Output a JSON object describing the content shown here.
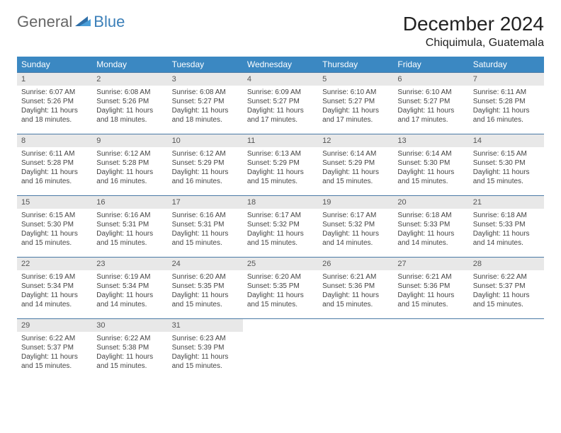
{
  "logo": {
    "text1": "General",
    "text2": "Blue"
  },
  "title": "December 2024",
  "location": "Chiquimula, Guatemala",
  "colors": {
    "header_bg": "#3b88c2",
    "header_text": "#ffffff",
    "daynum_bg": "#e8e8e8",
    "week_border": "#4a7aa5",
    "logo_gray": "#666666",
    "logo_blue": "#3b7fb8"
  },
  "day_names": [
    "Sunday",
    "Monday",
    "Tuesday",
    "Wednesday",
    "Thursday",
    "Friday",
    "Saturday"
  ],
  "weeks": [
    [
      {
        "day": "1",
        "sunrise": "Sunrise: 6:07 AM",
        "sunset": "Sunset: 5:26 PM",
        "daylight": "Daylight: 11 hours and 18 minutes."
      },
      {
        "day": "2",
        "sunrise": "Sunrise: 6:08 AM",
        "sunset": "Sunset: 5:26 PM",
        "daylight": "Daylight: 11 hours and 18 minutes."
      },
      {
        "day": "3",
        "sunrise": "Sunrise: 6:08 AM",
        "sunset": "Sunset: 5:27 PM",
        "daylight": "Daylight: 11 hours and 18 minutes."
      },
      {
        "day": "4",
        "sunrise": "Sunrise: 6:09 AM",
        "sunset": "Sunset: 5:27 PM",
        "daylight": "Daylight: 11 hours and 17 minutes."
      },
      {
        "day": "5",
        "sunrise": "Sunrise: 6:10 AM",
        "sunset": "Sunset: 5:27 PM",
        "daylight": "Daylight: 11 hours and 17 minutes."
      },
      {
        "day": "6",
        "sunrise": "Sunrise: 6:10 AM",
        "sunset": "Sunset: 5:27 PM",
        "daylight": "Daylight: 11 hours and 17 minutes."
      },
      {
        "day": "7",
        "sunrise": "Sunrise: 6:11 AM",
        "sunset": "Sunset: 5:28 PM",
        "daylight": "Daylight: 11 hours and 16 minutes."
      }
    ],
    [
      {
        "day": "8",
        "sunrise": "Sunrise: 6:11 AM",
        "sunset": "Sunset: 5:28 PM",
        "daylight": "Daylight: 11 hours and 16 minutes."
      },
      {
        "day": "9",
        "sunrise": "Sunrise: 6:12 AM",
        "sunset": "Sunset: 5:28 PM",
        "daylight": "Daylight: 11 hours and 16 minutes."
      },
      {
        "day": "10",
        "sunrise": "Sunrise: 6:12 AM",
        "sunset": "Sunset: 5:29 PM",
        "daylight": "Daylight: 11 hours and 16 minutes."
      },
      {
        "day": "11",
        "sunrise": "Sunrise: 6:13 AM",
        "sunset": "Sunset: 5:29 PM",
        "daylight": "Daylight: 11 hours and 15 minutes."
      },
      {
        "day": "12",
        "sunrise": "Sunrise: 6:14 AM",
        "sunset": "Sunset: 5:29 PM",
        "daylight": "Daylight: 11 hours and 15 minutes."
      },
      {
        "day": "13",
        "sunrise": "Sunrise: 6:14 AM",
        "sunset": "Sunset: 5:30 PM",
        "daylight": "Daylight: 11 hours and 15 minutes."
      },
      {
        "day": "14",
        "sunrise": "Sunrise: 6:15 AM",
        "sunset": "Sunset: 5:30 PM",
        "daylight": "Daylight: 11 hours and 15 minutes."
      }
    ],
    [
      {
        "day": "15",
        "sunrise": "Sunrise: 6:15 AM",
        "sunset": "Sunset: 5:30 PM",
        "daylight": "Daylight: 11 hours and 15 minutes."
      },
      {
        "day": "16",
        "sunrise": "Sunrise: 6:16 AM",
        "sunset": "Sunset: 5:31 PM",
        "daylight": "Daylight: 11 hours and 15 minutes."
      },
      {
        "day": "17",
        "sunrise": "Sunrise: 6:16 AM",
        "sunset": "Sunset: 5:31 PM",
        "daylight": "Daylight: 11 hours and 15 minutes."
      },
      {
        "day": "18",
        "sunrise": "Sunrise: 6:17 AM",
        "sunset": "Sunset: 5:32 PM",
        "daylight": "Daylight: 11 hours and 15 minutes."
      },
      {
        "day": "19",
        "sunrise": "Sunrise: 6:17 AM",
        "sunset": "Sunset: 5:32 PM",
        "daylight": "Daylight: 11 hours and 14 minutes."
      },
      {
        "day": "20",
        "sunrise": "Sunrise: 6:18 AM",
        "sunset": "Sunset: 5:33 PM",
        "daylight": "Daylight: 11 hours and 14 minutes."
      },
      {
        "day": "21",
        "sunrise": "Sunrise: 6:18 AM",
        "sunset": "Sunset: 5:33 PM",
        "daylight": "Daylight: 11 hours and 14 minutes."
      }
    ],
    [
      {
        "day": "22",
        "sunrise": "Sunrise: 6:19 AM",
        "sunset": "Sunset: 5:34 PM",
        "daylight": "Daylight: 11 hours and 14 minutes."
      },
      {
        "day": "23",
        "sunrise": "Sunrise: 6:19 AM",
        "sunset": "Sunset: 5:34 PM",
        "daylight": "Daylight: 11 hours and 14 minutes."
      },
      {
        "day": "24",
        "sunrise": "Sunrise: 6:20 AM",
        "sunset": "Sunset: 5:35 PM",
        "daylight": "Daylight: 11 hours and 15 minutes."
      },
      {
        "day": "25",
        "sunrise": "Sunrise: 6:20 AM",
        "sunset": "Sunset: 5:35 PM",
        "daylight": "Daylight: 11 hours and 15 minutes."
      },
      {
        "day": "26",
        "sunrise": "Sunrise: 6:21 AM",
        "sunset": "Sunset: 5:36 PM",
        "daylight": "Daylight: 11 hours and 15 minutes."
      },
      {
        "day": "27",
        "sunrise": "Sunrise: 6:21 AM",
        "sunset": "Sunset: 5:36 PM",
        "daylight": "Daylight: 11 hours and 15 minutes."
      },
      {
        "day": "28",
        "sunrise": "Sunrise: 6:22 AM",
        "sunset": "Sunset: 5:37 PM",
        "daylight": "Daylight: 11 hours and 15 minutes."
      }
    ],
    [
      {
        "day": "29",
        "sunrise": "Sunrise: 6:22 AM",
        "sunset": "Sunset: 5:37 PM",
        "daylight": "Daylight: 11 hours and 15 minutes."
      },
      {
        "day": "30",
        "sunrise": "Sunrise: 6:22 AM",
        "sunset": "Sunset: 5:38 PM",
        "daylight": "Daylight: 11 hours and 15 minutes."
      },
      {
        "day": "31",
        "sunrise": "Sunrise: 6:23 AM",
        "sunset": "Sunset: 5:39 PM",
        "daylight": "Daylight: 11 hours and 15 minutes."
      },
      {
        "empty": true
      },
      {
        "empty": true
      },
      {
        "empty": true
      },
      {
        "empty": true
      }
    ]
  ]
}
